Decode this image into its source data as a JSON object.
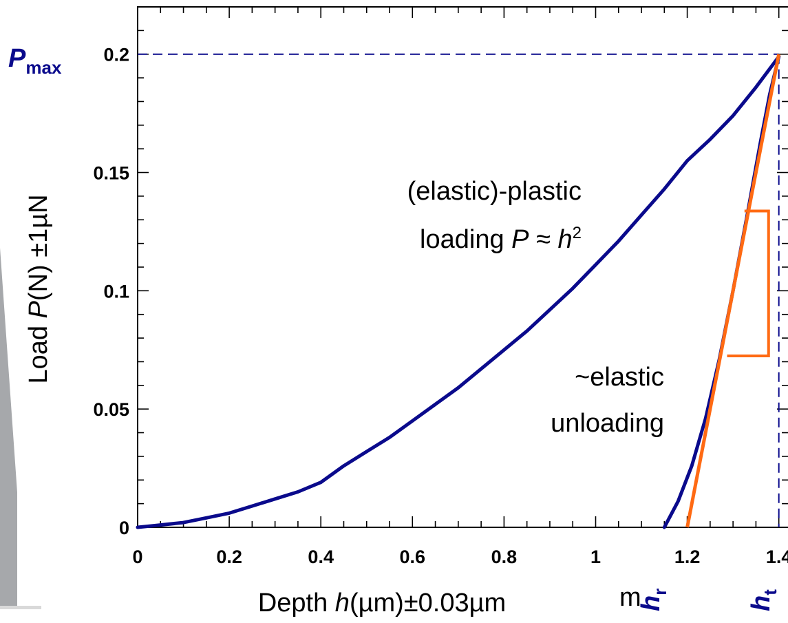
{
  "chart_data": {
    "type": "line",
    "xlabel": {
      "prefix": "Depth ",
      "var": "h",
      "suffix": "(µm)±0.03µm"
    },
    "ylabel": {
      "prefix": "Load ",
      "var": "P",
      "suffix": "(N) ±1µN"
    },
    "xlim": [
      0,
      1.42
    ],
    "ylim": [
      0,
      0.22
    ],
    "x_ticks": [
      "0",
      "0.2",
      "0.4",
      "0.6",
      "0.8",
      "1",
      "1.2",
      "1.4"
    ],
    "y_ticks": [
      "0",
      "0.05",
      "0.1",
      "0.15",
      "0.2"
    ],
    "grid": false,
    "colors": {
      "data": "#0a0a8c",
      "fit": "#ff6a13",
      "guide": "#0a0a8c",
      "axes": "#000000"
    },
    "series": [
      {
        "x": [
          0,
          0.05,
          0.1,
          0.15,
          0.2,
          0.25,
          0.3,
          0.35,
          0.4,
          0.45,
          0.5,
          0.55,
          0.6,
          0.65,
          0.7,
          0.75,
          0.8,
          0.85,
          0.9,
          0.95,
          1.0,
          1.05,
          1.1,
          1.15,
          1.2,
          1.25,
          1.3,
          1.35,
          1.4
        ],
        "y": [
          0,
          0.001,
          0.002,
          0.004,
          0.006,
          0.009,
          0.012,
          0.015,
          0.019,
          0.026,
          0.032,
          0.038,
          0.045,
          0.052,
          0.059,
          0.067,
          0.075,
          0.083,
          0.092,
          0.101,
          0.111,
          0.121,
          0.132,
          0.143,
          0.155,
          0.164,
          0.174,
          0.186,
          0.199
        ]
      },
      {
        "x": [
          1.15,
          1.18,
          1.21,
          1.24,
          1.27,
          1.3,
          1.33,
          1.36,
          1.38,
          1.4
        ],
        "y": [
          0,
          0.011,
          0.026,
          0.046,
          0.071,
          0.1,
          0.131,
          0.163,
          0.183,
          0.199
        ]
      }
    ],
    "fit_line": {
      "x": [
        1.2,
        1.4
      ],
      "y": [
        0,
        0.2
      ]
    },
    "pmax": 0.2,
    "ht": 1.4,
    "hr": 1.2,
    "annotations": {
      "loading_line1": "(elastic)-plastic",
      "loading_line2_prefix": "loading ",
      "loading_var_p": "P",
      "loading_approx": " ≈ ",
      "loading_var_h": "h",
      "loading_exp": "2",
      "unloading_line1": "~elastic",
      "unloading_line2": "unloading",
      "pmax_main": "P",
      "pmax_sub": "max",
      "hr_main": "h",
      "hr_sub": "r",
      "ht_main": "h",
      "ht_sub": "t",
      "stray": "m"
    }
  }
}
